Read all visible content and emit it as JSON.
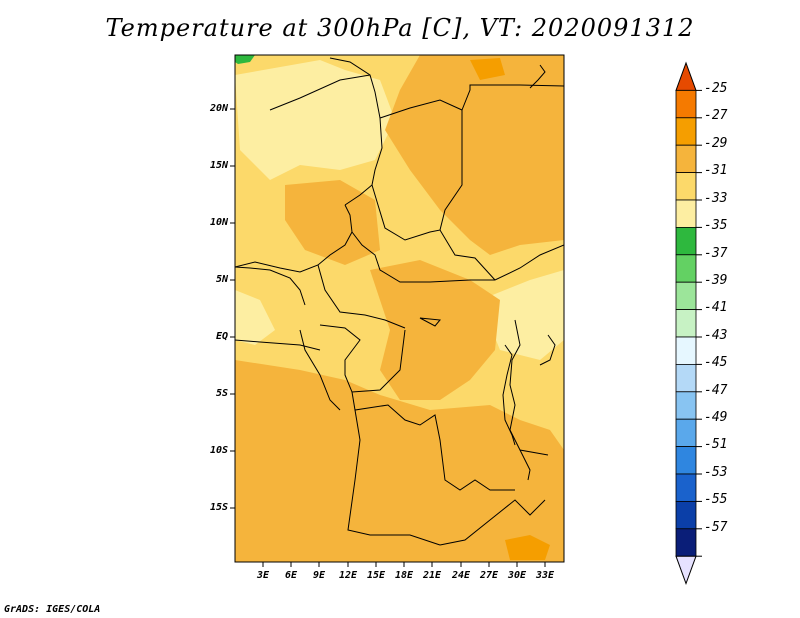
{
  "title": "Temperature at 300hPa [C], VT: 2020091312",
  "credit": "GrADS: IGES/COLA",
  "map": {
    "lat_labels": [
      "20N",
      "15N",
      "10N",
      "5N",
      "EQ",
      "5S",
      "10S",
      "15S"
    ],
    "lon_labels": [
      "3E",
      "6E",
      "9E",
      "12E",
      "15E",
      "18E",
      "21E",
      "24E",
      "27E",
      "30E",
      "33E"
    ]
  },
  "colorbar": {
    "labels": [
      "-25",
      "-27",
      "-29",
      "-31",
      "-33",
      "-35",
      "-37",
      "-39",
      "-41",
      "-43",
      "-45",
      "-47",
      "-49",
      "-51",
      "-53",
      "-55",
      "-57"
    ],
    "colors": [
      "#e64a00",
      "#f57a00",
      "#f59e00",
      "#f5b43c",
      "#fcd96a",
      "#fdeea2",
      "#2eb83e",
      "#63d163",
      "#9ce59a",
      "#c7f2c4",
      "#e6f7ff",
      "#b4d9f7",
      "#88c4f2",
      "#5aa8eb",
      "#2f86e0",
      "#1a62cc",
      "#0b3fa8",
      "#0a1e78",
      "#e6e2ff"
    ]
  },
  "legend_colors": {
    "c_29_31": "#f5b43c",
    "c_31_33": "#fcd96a",
    "c_33_35": "#fdeea2",
    "c_27_29": "#f59e00",
    "c_37_35": "#2eb83e"
  }
}
